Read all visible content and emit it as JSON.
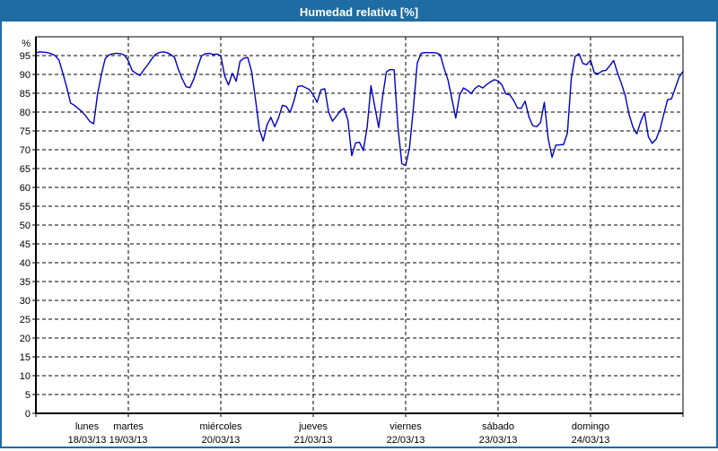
{
  "window": {
    "title": "Humedad relativa [%]"
  },
  "theme": {
    "titlebar_color": "#1e6ca3",
    "frame_color": "#1e6ca3",
    "plot_background": "#ffffff",
    "line_color": "#0000c0",
    "grid_color": "#000000",
    "axis_color": "#000000",
    "text_color": "#000000",
    "title_text_color": "#ffffff"
  },
  "chart_data": {
    "type": "line",
    "title": "Humedad relativa [%]",
    "ylabel": "%",
    "ylim": [
      0,
      100
    ],
    "y_ticks": {
      "min": 0,
      "max": 95,
      "step": 5
    },
    "grid": "dashed",
    "legend": "none",
    "x_unit": "hours",
    "days": [
      {
        "name": "lunes",
        "date": "18/03/13",
        "hourly": [
          95.7,
          96,
          95.9,
          95.8,
          95.5,
          95,
          93.8,
          90.3,
          86.6,
          82.4,
          81.8,
          80.9,
          80.1,
          78.9,
          77.5,
          76.9,
          84.7,
          90,
          94.2,
          95.2,
          95.5,
          95.6,
          95.5,
          95.1
        ]
      },
      {
        "name": "martes",
        "date": "19/03/13",
        "hourly": [
          93.6,
          91,
          90.3,
          89.7,
          91.2,
          92.5,
          94,
          95.3,
          95.8,
          96,
          95.8,
          95.3,
          94.5,
          91.3,
          88.8,
          86.7,
          86.5,
          88.8,
          92,
          94.9,
          95.5,
          95.6,
          95.3,
          95.4
        ]
      },
      {
        "name": "miércoles",
        "date": "20/03/13",
        "hourly": [
          95,
          89.6,
          87.2,
          90.3,
          88.2,
          93.5,
          94.3,
          94.5,
          90.8,
          83.5,
          75.5,
          72.3,
          76.6,
          78.6,
          76.1,
          78.5,
          81.8,
          81.5,
          79.9,
          83,
          86.8,
          87,
          86.5,
          86
        ]
      },
      {
        "name": "jueves",
        "date": "21/03/13",
        "hourly": [
          84.6,
          82.6,
          85.9,
          86.2,
          80,
          77.6,
          78.9,
          80.3,
          81,
          77.9,
          68.4,
          71.8,
          72,
          69.8,
          76,
          87,
          81.3,
          75.9,
          84,
          90.7,
          91.3,
          91.2,
          76,
          66.3
        ]
      },
      {
        "name": "viernes",
        "date": "22/03/13",
        "hourly": [
          65.8,
          70.5,
          81,
          93,
          95.6,
          95.8,
          95.8,
          95.8,
          95.7,
          95.2,
          91.5,
          88.5,
          83.5,
          78.4,
          84.5,
          86.4,
          85.8,
          84.9,
          86.3,
          87,
          86.4,
          87.3,
          88,
          88.6
        ]
      },
      {
        "name": "sábado",
        "date": "23/03/13",
        "hourly": [
          88.3,
          87.2,
          84.8,
          84.6,
          83.2,
          81.1,
          81,
          82.9,
          78.7,
          76.4,
          76.1,
          77.2,
          82.6,
          73,
          68,
          71.2,
          71.3,
          71.4,
          74.5,
          89,
          94.8,
          95.5,
          92.9,
          92.6
        ]
      },
      {
        "name": "domingo",
        "date": "24/03/13",
        "hourly": [
          93.8,
          90.4,
          90.2,
          90.9,
          91.1,
          92.3,
          93.7,
          90.4,
          87.6,
          84.4,
          79.4,
          76,
          74.2,
          77.4,
          79.9,
          73.5,
          71.7,
          72.8,
          75.3,
          79.4,
          83.3,
          83.5,
          86.4,
          89.3
        ]
      }
    ],
    "end_value": 90.8
  }
}
